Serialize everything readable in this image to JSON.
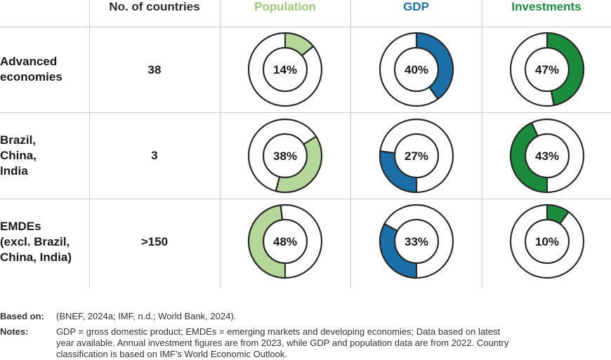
{
  "header": {
    "countries": "No. of countries",
    "population": "Population",
    "gdp": "GDP",
    "investments": "Investments"
  },
  "colors": {
    "population": "#b5d79a",
    "gdp": "#1a6fa6",
    "investments": "#1a8c3c",
    "outline": "#2b2b2b"
  },
  "rows": [
    {
      "label_lines": [
        "Advanced",
        "economies"
      ],
      "count": "38",
      "population": "14%",
      "gdp": "40%",
      "investments": "47%"
    },
    {
      "label_lines": [
        "Brazil,",
        "China,",
        "India"
      ],
      "count": "3",
      "population": "38%",
      "gdp": "27%",
      "investments": "43%"
    },
    {
      "label_lines": [
        "EMDEs",
        "(excl. Brazil,",
        "China, India)"
      ],
      "count": ">150",
      "population": "48%",
      "gdp": "33%",
      "investments": "10%"
    }
  ],
  "chart_data": {
    "type": "table",
    "columns": [
      "No. of countries",
      "Population",
      "GDP",
      "Investments"
    ],
    "rows": [
      "Advanced economies",
      "Brazil, China, India",
      "EMDEs (excl. Brazil, China, India)"
    ],
    "series": [
      {
        "name": "Population",
        "values": [
          14,
          38,
          48
        ]
      },
      {
        "name": "GDP",
        "values": [
          40,
          27,
          33
        ]
      },
      {
        "name": "Investments",
        "values": [
          47,
          43,
          10
        ]
      }
    ],
    "start_angles_deg": {
      "Population": [
        0,
        58,
        180
      ],
      "GDP": [
        0,
        180,
        180
      ],
      "Investments": [
        0,
        180,
        0
      ]
    }
  },
  "footer": {
    "based_on_label": "Based on:",
    "based_on_text": "(BNEF, 2024a; IMF, n.d.; World Bank, 2024).",
    "notes_label": "Notes:",
    "notes_lines": [
      "GDP = gross domestic product; EMDEs = emerging markets and developing economies; Data based on latest",
      "year available. Annual investment figures are from 2023, while GDP and population data are from 2022. Country",
      "classification is based on IMF’s World Economic Outlook."
    ]
  }
}
